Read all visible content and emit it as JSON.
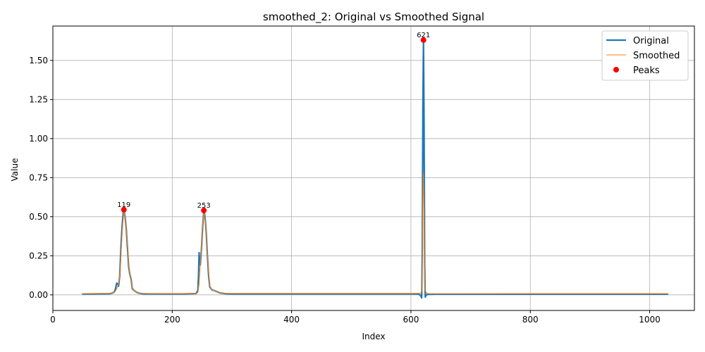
{
  "chart_data": {
    "type": "line",
    "title": "smoothed_2: Original vs Smoothed Signal",
    "xlabel": "Index",
    "ylabel": "Value",
    "xlim": [
      0,
      1075
    ],
    "ylim": [
      -0.1,
      1.72
    ],
    "xticks": [
      0,
      200,
      400,
      600,
      800,
      1000
    ],
    "xtick_labels": [
      "0",
      "200",
      "400",
      "600",
      "800",
      "1000"
    ],
    "yticks": [
      0.0,
      0.25,
      0.5,
      0.75,
      1.0,
      1.25,
      1.5
    ],
    "ytick_labels": [
      "0.00",
      "0.25",
      "0.50",
      "0.75",
      "1.00",
      "1.25",
      "1.50"
    ],
    "grid": true,
    "legend_position": "top-right",
    "series": [
      {
        "name": "Original",
        "color": "#1f77b4",
        "style": "line-thick",
        "x": [
          50,
          95,
          100,
          103,
          105,
          107,
          109,
          110,
          112,
          114,
          116,
          118,
          119,
          121,
          123,
          125,
          127,
          129,
          131,
          133,
          137,
          141,
          145,
          150,
          155,
          160,
          180,
          200,
          220,
          240,
          243,
          244,
          245,
          246,
          247,
          249,
          251,
          253,
          255,
          257,
          259,
          261,
          263,
          265,
          267,
          270,
          275,
          280,
          290,
          300,
          400,
          500,
          600,
          612,
          615,
          617,
          618,
          619,
          620,
          621,
          622,
          623,
          624,
          625,
          627,
          630,
          640,
          700,
          800,
          900,
          1000,
          1030
        ],
        "y": [
          0.005,
          0.007,
          0.012,
          0.018,
          0.04,
          0.075,
          0.07,
          0.055,
          0.12,
          0.3,
          0.44,
          0.53,
          0.545,
          0.5,
          0.42,
          0.3,
          0.18,
          0.13,
          0.1,
          0.04,
          0.025,
          0.015,
          0.01,
          0.007,
          0.006,
          0.006,
          0.006,
          0.006,
          0.006,
          0.008,
          0.03,
          0.12,
          0.27,
          0.2,
          0.19,
          0.3,
          0.44,
          0.535,
          0.5,
          0.4,
          0.25,
          0.12,
          0.05,
          0.04,
          0.03,
          0.028,
          0.02,
          0.012,
          0.007,
          0.006,
          0.006,
          0.006,
          0.006,
          0.005,
          0.0,
          -0.01,
          -0.02,
          0.3,
          1.2,
          1.63,
          1.1,
          0.2,
          -0.015,
          -0.005,
          0.002,
          0.003,
          0.004,
          0.004,
          0.004,
          0.004,
          0.004,
          0.004
        ]
      },
      {
        "name": "Smoothed",
        "color": "#ff7f0e",
        "style": "line-thin",
        "x": [
          50,
          95,
          100,
          103,
          105,
          107,
          109,
          111,
          113,
          115,
          117,
          119,
          121,
          123,
          125,
          127,
          129,
          131,
          133,
          137,
          141,
          145,
          150,
          160,
          200,
          240,
          243,
          245,
          247,
          249,
          251,
          253,
          255,
          257,
          259,
          261,
          263,
          265,
          267,
          270,
          275,
          280,
          290,
          300,
          400,
          500,
          600,
          614,
          617,
          618,
          619,
          620,
          621,
          622,
          623,
          624,
          626,
          630,
          640,
          700,
          800,
          900,
          1000,
          1030
        ],
        "y": [
          0.008,
          0.009,
          0.012,
          0.016,
          0.025,
          0.04,
          0.06,
          0.09,
          0.17,
          0.32,
          0.45,
          0.53,
          0.5,
          0.42,
          0.32,
          0.2,
          0.13,
          0.09,
          0.045,
          0.025,
          0.016,
          0.011,
          0.009,
          0.008,
          0.008,
          0.008,
          0.015,
          0.07,
          0.2,
          0.33,
          0.45,
          0.52,
          0.5,
          0.41,
          0.27,
          0.14,
          0.06,
          0.04,
          0.03,
          0.027,
          0.02,
          0.013,
          0.009,
          0.009,
          0.009,
          0.009,
          0.009,
          0.01,
          0.012,
          0.03,
          0.2,
          0.6,
          0.78,
          0.55,
          0.15,
          0.03,
          0.01,
          0.008,
          0.007,
          0.007,
          0.008,
          0.008,
          0.008,
          0.008
        ]
      },
      {
        "name": "Peaks",
        "color": "#ff0000",
        "style": "markers",
        "x": [
          119,
          253,
          621
        ],
        "y": [
          0.545,
          0.54,
          1.63
        ],
        "labels": [
          "119",
          "253",
          "621"
        ]
      }
    ]
  }
}
